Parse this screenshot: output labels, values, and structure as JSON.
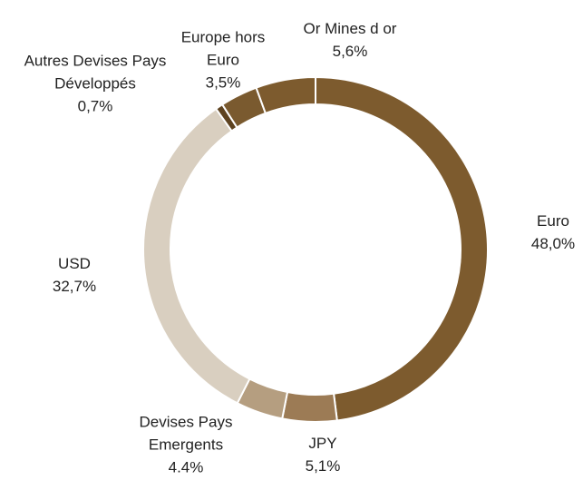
{
  "chart_data": {
    "type": "donut",
    "categories": [
      "Euro",
      "JPY",
      "Devises Pays Emergents",
      "USD",
      "Autres Devises Pays Développés",
      "Europe hors Euro",
      "Or Mines d or"
    ],
    "values": [
      48.0,
      5.1,
      4.4,
      32.7,
      0.7,
      3.5,
      5.6
    ],
    "value_labels": [
      "48,0%",
      "5,1%",
      "4.4%",
      "32,7%",
      "0,7%",
      "3,5%",
      "5,6%"
    ],
    "colors": [
      "#7d5b2e",
      "#9c7b55",
      "#b59e80",
      "#d9cfc0",
      "#5e4320",
      "#7a5a2f",
      "#7d5b2e"
    ]
  }
}
